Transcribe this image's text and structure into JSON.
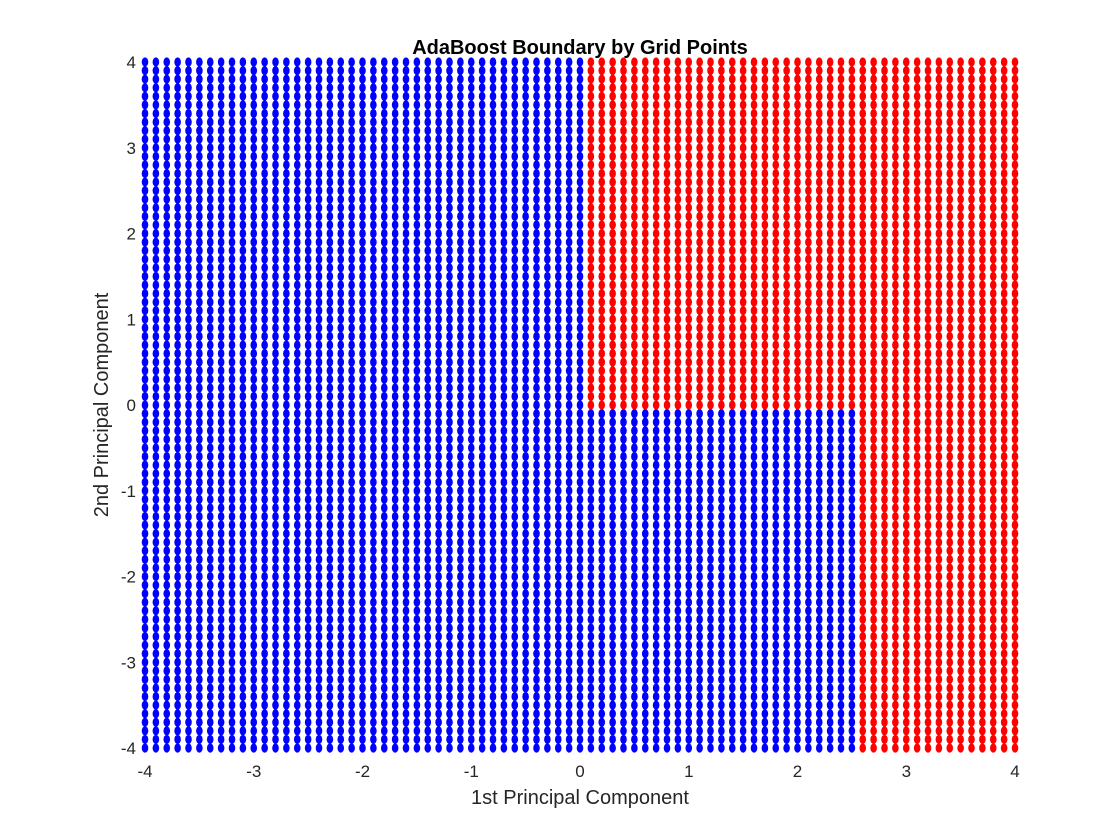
{
  "chart_data": {
    "type": "scatter",
    "title": "AdaBoost Boundary by Grid Points",
    "xlabel": "1st Principal Component",
    "ylabel": "2nd Principal Component",
    "xlim": [
      -4,
      4
    ],
    "ylim": [
      -4,
      4
    ],
    "xticks": [
      "-4",
      "-3",
      "-2",
      "-1",
      "0",
      "1",
      "2",
      "3",
      "4"
    ],
    "yticks": [
      "-4",
      "-3",
      "-2",
      "-1",
      "0",
      "1",
      "2",
      "3",
      "4"
    ],
    "grid": false,
    "grid_points": {
      "x_start": -4,
      "x_end": 4,
      "x_step": 0.1,
      "y_start": -4,
      "y_end": 4,
      "y_step": 0.1
    },
    "series": [
      {
        "class": "blue",
        "color": "#0000ff",
        "region_rule": "x <= 0.05 OR (x > 0.05 AND x <= 2.55 AND y <= -0.1)"
      },
      {
        "class": "red",
        "color": "#ff0000",
        "region_rule": "x > 2.55 OR (x > 0.05 AND y > -0.1)"
      }
    ],
    "decision_thresholds": {
      "x1": 0.05,
      "x2": 2.55,
      "y1": -0.1
    }
  }
}
